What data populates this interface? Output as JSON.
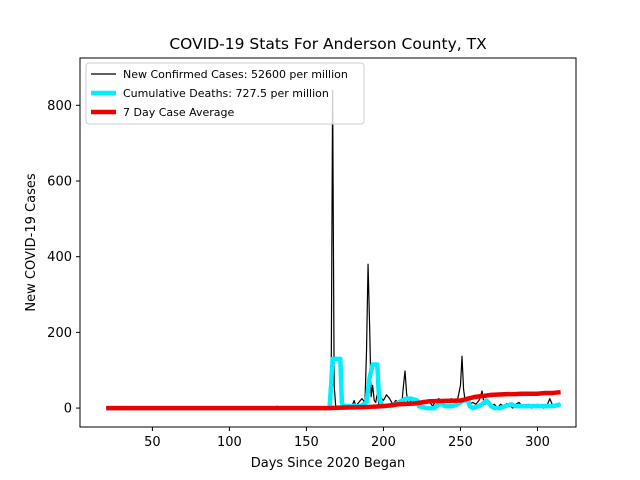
{
  "chart_data": {
    "type": "line",
    "title": "COVID-19 Stats For Anderson County, TX",
    "xlabel": "Days Since 2020 Began",
    "ylabel": "New COVID-19 Cases",
    "xlim": [
      3,
      325
    ],
    "ylim": [
      -50,
      925
    ],
    "xticks": [
      50,
      100,
      150,
      200,
      250,
      300
    ],
    "yticks": [
      0,
      200,
      400,
      600,
      800
    ],
    "grid": false,
    "legend_position": "top-left",
    "series": [
      {
        "name": "New Confirmed Cases: 52600 per million",
        "color": "#000000",
        "style": "thin",
        "points": [
          [
            20,
            0
          ],
          [
            60,
            0
          ],
          [
            100,
            0
          ],
          [
            110,
            1
          ],
          [
            120,
            0
          ],
          [
            130,
            2
          ],
          [
            131,
            5
          ],
          [
            132,
            0
          ],
          [
            140,
            1
          ],
          [
            150,
            2
          ],
          [
            160,
            3
          ],
          [
            163,
            0
          ],
          [
            165,
            0
          ],
          [
            166,
            10
          ],
          [
            167,
            840
          ],
          [
            168,
            60
          ],
          [
            169,
            5
          ],
          [
            170,
            0
          ],
          [
            175,
            2
          ],
          [
            180,
            10
          ],
          [
            181,
            20
          ],
          [
            182,
            5
          ],
          [
            184,
            15
          ],
          [
            186,
            25
          ],
          [
            188,
            15
          ],
          [
            189,
            150
          ],
          [
            190,
            380
          ],
          [
            191,
            220
          ],
          [
            192,
            30
          ],
          [
            193,
            60
          ],
          [
            194,
            20
          ],
          [
            195,
            15
          ],
          [
            196,
            40
          ],
          [
            197,
            10
          ],
          [
            198,
            30
          ],
          [
            200,
            20
          ],
          [
            202,
            35
          ],
          [
            204,
            25
          ],
          [
            206,
            10
          ],
          [
            208,
            20
          ],
          [
            210,
            15
          ],
          [
            212,
            15
          ],
          [
            213,
            60
          ],
          [
            214,
            98
          ],
          [
            215,
            40
          ],
          [
            216,
            10
          ],
          [
            218,
            20
          ],
          [
            220,
            25
          ],
          [
            222,
            15
          ],
          [
            224,
            10
          ],
          [
            226,
            20
          ],
          [
            228,
            15
          ],
          [
            230,
            15
          ],
          [
            232,
            5
          ],
          [
            234,
            20
          ],
          [
            236,
            25
          ],
          [
            238,
            10
          ],
          [
            240,
            20
          ],
          [
            242,
            15
          ],
          [
            244,
            25
          ],
          [
            246,
            15
          ],
          [
            248,
            20
          ],
          [
            250,
            60
          ],
          [
            251,
            137
          ],
          [
            252,
            50
          ],
          [
            253,
            20
          ],
          [
            256,
            10
          ],
          [
            258,
            15
          ],
          [
            260,
            10
          ],
          [
            262,
            20
          ],
          [
            264,
            45
          ],
          [
            265,
            20
          ],
          [
            266,
            10
          ],
          [
            268,
            15
          ],
          [
            270,
            5
          ],
          [
            272,
            10
          ],
          [
            274,
            0
          ],
          [
            276,
            10
          ],
          [
            278,
            5
          ],
          [
            280,
            12
          ],
          [
            282,
            8
          ],
          [
            284,
            0
          ],
          [
            286,
            10
          ],
          [
            288,
            15
          ],
          [
            290,
            5
          ],
          [
            292,
            8
          ],
          [
            294,
            10
          ],
          [
            296,
            0
          ],
          [
            298,
            5
          ],
          [
            300,
            10
          ],
          [
            302,
            5
          ],
          [
            304,
            0
          ],
          [
            306,
            5
          ],
          [
            308,
            25
          ],
          [
            310,
            5
          ],
          [
            312,
            8
          ],
          [
            315,
            10
          ]
        ]
      },
      {
        "name": "Cumulative Deaths: 727.5 per million",
        "color": "#00eeff",
        "style": "thick",
        "points": [
          [
            20,
            0
          ],
          [
            100,
            0
          ],
          [
            160,
            0
          ],
          [
            165,
            0
          ],
          [
            166,
            60
          ],
          [
            167,
            130
          ],
          [
            172,
            130
          ],
          [
            173,
            15
          ],
          [
            174,
            5
          ],
          [
            180,
            5
          ],
          [
            185,
            5
          ],
          [
            189,
            15
          ],
          [
            191,
            80
          ],
          [
            193,
            115
          ],
          [
            196,
            115
          ],
          [
            197,
            35
          ],
          [
            199,
            5
          ],
          [
            205,
            5
          ],
          [
            210,
            15
          ],
          [
            212,
            20
          ],
          [
            215,
            25
          ],
          [
            218,
            25
          ],
          [
            222,
            20
          ],
          [
            223,
            5
          ],
          [
            228,
            0
          ],
          [
            233,
            0
          ],
          [
            236,
            10
          ],
          [
            238,
            10
          ],
          [
            240,
            5
          ],
          [
            245,
            5
          ],
          [
            248,
            10
          ],
          [
            250,
            15
          ],
          [
            252,
            20
          ],
          [
            255,
            20
          ],
          [
            256,
            5
          ],
          [
            258,
            0
          ],
          [
            262,
            5
          ],
          [
            264,
            10
          ],
          [
            267,
            20
          ],
          [
            270,
            5
          ],
          [
            272,
            0
          ],
          [
            276,
            0
          ],
          [
            279,
            5
          ],
          [
            283,
            10
          ],
          [
            286,
            5
          ],
          [
            290,
            5
          ],
          [
            294,
            5
          ],
          [
            298,
            5
          ],
          [
            302,
            5
          ],
          [
            306,
            5
          ],
          [
            310,
            5
          ],
          [
            315,
            10
          ]
        ]
      },
      {
        "name": "7 Day Case Average",
        "color": "#ee0000",
        "style": "thick",
        "points": [
          [
            20,
            0
          ],
          [
            100,
            0
          ],
          [
            150,
            0
          ],
          [
            165,
            0
          ],
          [
            170,
            1
          ],
          [
            180,
            2
          ],
          [
            190,
            3
          ],
          [
            200,
            5
          ],
          [
            210,
            10
          ],
          [
            220,
            12
          ],
          [
            225,
            15
          ],
          [
            230,
            18
          ],
          [
            240,
            19
          ],
          [
            250,
            20
          ],
          [
            255,
            25
          ],
          [
            260,
            30
          ],
          [
            265,
            32
          ],
          [
            270,
            35
          ],
          [
            275,
            36
          ],
          [
            280,
            37
          ],
          [
            285,
            37
          ],
          [
            290,
            38
          ],
          [
            300,
            38
          ],
          [
            305,
            40
          ],
          [
            310,
            40
          ],
          [
            315,
            42
          ]
        ]
      }
    ]
  }
}
